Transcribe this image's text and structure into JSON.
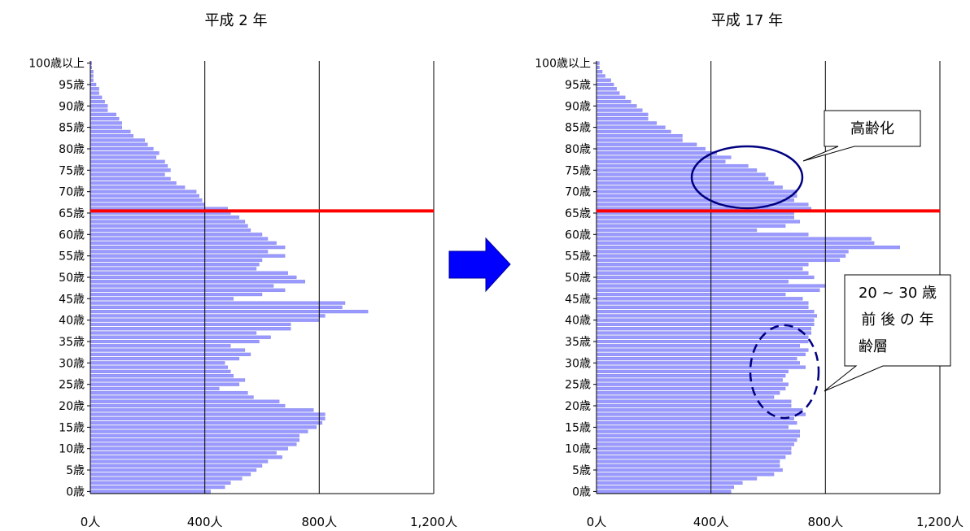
{
  "colors": {
    "bar": "#9999ff",
    "bar_stroke": "#7f7fe6",
    "threshold": "#ff0000",
    "arrow_fill": "#0000ff",
    "arrow_stroke": "#000099",
    "ellipse": "#000080",
    "grid": "#000000"
  },
  "arrow": {
    "shape": "right-arrow"
  },
  "chart_data": [
    {
      "type": "bar",
      "orientation": "horizontal",
      "title": "平成 2 年",
      "xlabel": "",
      "ylabel": "",
      "xlim": [
        0,
        1200
      ],
      "xticks": [
        "0人",
        "400人",
        "800人",
        "1,200人"
      ],
      "yticks": [
        "0歳",
        "5歳",
        "10歳",
        "15歳",
        "20歳",
        "25歳",
        "30歳",
        "35歳",
        "40歳",
        "45歳",
        "50歳",
        "55歳",
        "60歳",
        "65歳",
        "70歳",
        "75歳",
        "80歳",
        "85歳",
        "90歳",
        "95歳",
        "100歳以上"
      ],
      "grid": "vertical",
      "threshold_age": 65,
      "categories_note": "ages 0 to 100 (100 = 100歳以上)",
      "values": [
        420,
        470,
        490,
        530,
        560,
        580,
        600,
        620,
        670,
        650,
        690,
        720,
        730,
        730,
        760,
        790,
        810,
        820,
        820,
        780,
        680,
        660,
        570,
        550,
        450,
        520,
        540,
        500,
        490,
        480,
        470,
        520,
        560,
        540,
        490,
        590,
        630,
        580,
        700,
        700,
        800,
        820,
        970,
        880,
        890,
        500,
        600,
        680,
        640,
        750,
        720,
        690,
        580,
        590,
        600,
        680,
        620,
        680,
        650,
        620,
        600,
        560,
        550,
        540,
        520,
        490,
        480,
        400,
        390,
        380,
        370,
        330,
        300,
        280,
        260,
        280,
        270,
        260,
        230,
        240,
        220,
        200,
        190,
        150,
        140,
        110,
        110,
        100,
        90,
        60,
        60,
        50,
        40,
        30,
        30,
        20,
        10,
        10,
        10,
        5,
        5
      ]
    },
    {
      "type": "bar",
      "orientation": "horizontal",
      "title": "平成 17 年",
      "xlabel": "",
      "ylabel": "",
      "xlim": [
        0,
        1200
      ],
      "xticks": [
        "0人",
        "400人",
        "800人",
        "1,200人"
      ],
      "yticks": [
        "0歳",
        "5歳",
        "10歳",
        "15歳",
        "20歳",
        "25歳",
        "30歳",
        "35歳",
        "40歳",
        "45歳",
        "50歳",
        "55歳",
        "60歳",
        "65歳",
        "70歳",
        "75歳",
        "80歳",
        "85歳",
        "90歳",
        "95歳",
        "100歳以上"
      ],
      "grid": "vertical",
      "threshold_age": 65,
      "categories_note": "ages 0 to 100 (100 = 100歳以上)",
      "values": [
        470,
        480,
        510,
        560,
        620,
        650,
        640,
        640,
        660,
        680,
        680,
        690,
        700,
        710,
        710,
        670,
        700,
        690,
        730,
        720,
        680,
        680,
        620,
        640,
        660,
        670,
        650,
        660,
        670,
        730,
        710,
        700,
        730,
        740,
        710,
        740,
        740,
        750,
        750,
        760,
        760,
        770,
        760,
        740,
        740,
        720,
        660,
        780,
        800,
        670,
        760,
        740,
        720,
        740,
        850,
        870,
        880,
        1060,
        970,
        960,
        740,
        560,
        660,
        710,
        690,
        690,
        750,
        740,
        690,
        700,
        700,
        650,
        620,
        600,
        590,
        560,
        530,
        450,
        470,
        420,
        380,
        350,
        300,
        300,
        260,
        240,
        210,
        180,
        180,
        160,
        140,
        120,
        100,
        80,
        70,
        60,
        50,
        30,
        20,
        10,
        10
      ],
      "annotations": [
        {
          "text": "高齢化",
          "kind": "callout"
        },
        {
          "text": "20 ~ 30 歳前後の年齢層",
          "lines": [
            "20 ~ 30 歳",
            "前 後 の 年",
            "齢層"
          ],
          "kind": "callout"
        }
      ]
    }
  ]
}
